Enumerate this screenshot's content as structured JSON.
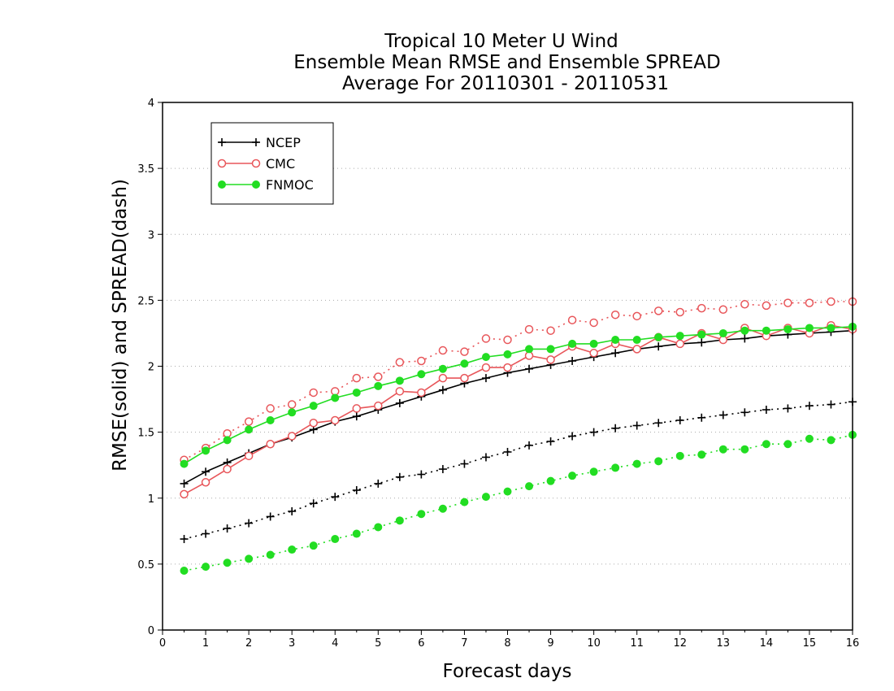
{
  "chart_data": {
    "type": "line",
    "title": [
      "Tropical 10 Meter U Wind",
      "Ensemble Mean RMSE and Ensemble SPREAD",
      "Average For 20110301 - 20110531"
    ],
    "xlabel": "Forecast days",
    "ylabel": "RMSE(solid) and SPREAD(dash)",
    "xlim": [
      0,
      16
    ],
    "ylim": [
      0,
      4
    ],
    "xticks": [
      "0",
      "1",
      "2",
      "3",
      "4",
      "5",
      "6",
      "7",
      "8",
      "9",
      "10",
      "11",
      "12",
      "13",
      "14",
      "15",
      "16"
    ],
    "yticks": [
      "0",
      "0.5",
      "1",
      "1.5",
      "2",
      "2.5",
      "3",
      "3.5",
      "4"
    ],
    "grid": "horizontal dotted",
    "legend_position": "top-left",
    "x": [
      0.5,
      1,
      1.5,
      2,
      2.5,
      3,
      3.5,
      4,
      4.5,
      5,
      5.5,
      6,
      6.5,
      7,
      7.5,
      8,
      8.5,
      9,
      9.5,
      10,
      10.5,
      11,
      11.5,
      12,
      12.5,
      13,
      13.5,
      14,
      14.5,
      15,
      15.5,
      16
    ],
    "series": [
      {
        "name": "NCEP",
        "color": "#000000",
        "marker": "plus",
        "rmse": [
          1.11,
          1.2,
          1.27,
          1.34,
          1.41,
          1.46,
          1.52,
          1.58,
          1.62,
          1.67,
          1.72,
          1.77,
          1.82,
          1.87,
          1.91,
          1.95,
          1.98,
          2.01,
          2.04,
          2.07,
          2.1,
          2.13,
          2.15,
          2.17,
          2.18,
          2.2,
          2.21,
          2.23,
          2.24,
          2.25,
          2.26,
          2.27
        ],
        "spread": [
          0.69,
          0.73,
          0.77,
          0.81,
          0.86,
          0.9,
          0.96,
          1.01,
          1.06,
          1.11,
          1.16,
          1.18,
          1.22,
          1.26,
          1.31,
          1.35,
          1.4,
          1.43,
          1.47,
          1.5,
          1.53,
          1.55,
          1.57,
          1.59,
          1.61,
          1.63,
          1.65,
          1.67,
          1.68,
          1.7,
          1.71,
          1.73
        ]
      },
      {
        "name": "CMC",
        "color": "#e8565a",
        "marker": "open-circle",
        "rmse": [
          1.03,
          1.12,
          1.22,
          1.32,
          1.41,
          1.47,
          1.57,
          1.59,
          1.68,
          1.7,
          1.81,
          1.8,
          1.91,
          1.91,
          1.99,
          1.99,
          2.08,
          2.05,
          2.15,
          2.1,
          2.17,
          2.13,
          2.22,
          2.17,
          2.25,
          2.2,
          2.29,
          2.23,
          2.29,
          2.25,
          2.31,
          2.28
        ],
        "spread": [
          1.29,
          1.38,
          1.49,
          1.58,
          1.68,
          1.71,
          1.8,
          1.81,
          1.91,
          1.92,
          2.03,
          2.04,
          2.12,
          2.11,
          2.21,
          2.2,
          2.28,
          2.27,
          2.35,
          2.33,
          2.39,
          2.38,
          2.42,
          2.41,
          2.44,
          2.43,
          2.47,
          2.46,
          2.48,
          2.48,
          2.49,
          2.49
        ]
      },
      {
        "name": "FNMOC",
        "color": "#22dd22",
        "marker": "filled-circle",
        "rmse": [
          1.26,
          1.36,
          1.44,
          1.52,
          1.59,
          1.65,
          1.7,
          1.76,
          1.8,
          1.85,
          1.89,
          1.94,
          1.98,
          2.02,
          2.07,
          2.09,
          2.13,
          2.13,
          2.17,
          2.17,
          2.2,
          2.2,
          2.22,
          2.23,
          2.24,
          2.25,
          2.27,
          2.27,
          2.28,
          2.29,
          2.29,
          2.3
        ],
        "spread": [
          0.45,
          0.48,
          0.51,
          0.54,
          0.57,
          0.61,
          0.64,
          0.69,
          0.73,
          0.78,
          0.83,
          0.88,
          0.92,
          0.97,
          1.01,
          1.05,
          1.09,
          1.13,
          1.17,
          1.2,
          1.23,
          1.26,
          1.28,
          1.32,
          1.33,
          1.37,
          1.37,
          1.41,
          1.41,
          1.45,
          1.44,
          1.48
        ]
      }
    ]
  }
}
